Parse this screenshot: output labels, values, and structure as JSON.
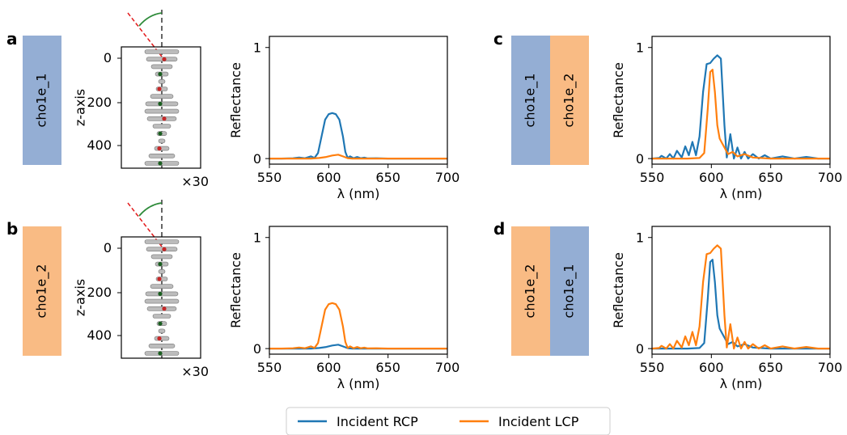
{
  "panel_labels": [
    "a",
    "b",
    "c",
    "d"
  ],
  "layer_labels": {
    "a": [
      "cho1e_1"
    ],
    "b": [
      "cho1e_2"
    ],
    "c": [
      "cho1e_1",
      "cho1e_2"
    ],
    "d": [
      "cho1e_2",
      "cho1e_1"
    ]
  },
  "colors": {
    "cho1e_1": "#94aed4",
    "cho1e_2": "#f9bb84",
    "rcp": "#1f77b4",
    "lcp": "#ff7f0e",
    "helix_axis": "#333333",
    "tilt_line": "#e31a1c",
    "tilt_arc": "#2e8b3a"
  },
  "structure": {
    "ylabel": "z-axis",
    "yticks": [
      0,
      200,
      400
    ],
    "multiplier": "×30"
  },
  "legend": [
    "Incident RCP",
    "Incident LCP"
  ],
  "chart_data": [
    {
      "id": "a",
      "type": "line",
      "xlabel": "λ (nm)",
      "ylabel": "Reflectance",
      "xlim": [
        550,
        700
      ],
      "ylim": [
        -0.05,
        1.1
      ],
      "xticks": [
        550,
        600,
        650,
        700
      ],
      "yticks": [
        0,
        1
      ],
      "series": [
        {
          "name": "Incident RCP",
          "x": [
            550,
            560,
            570,
            575,
            580,
            585,
            588,
            591,
            594,
            597,
            600,
            603,
            606,
            609,
            612,
            614,
            616,
            618,
            621,
            624,
            627,
            630,
            633,
            640,
            650,
            700
          ],
          "y": [
            0,
            0,
            0.003,
            0.01,
            0.003,
            0.02,
            0.005,
            0.05,
            0.2,
            0.35,
            0.4,
            0.41,
            0.4,
            0.35,
            0.2,
            0.06,
            0.005,
            0.02,
            0.003,
            0.014,
            0.003,
            0.008,
            0.002,
            0.003,
            0,
            0
          ]
        },
        {
          "name": "Incident LCP",
          "x": [
            550,
            570,
            585,
            592,
            598,
            603,
            608,
            612,
            616,
            620,
            650,
            700
          ],
          "y": [
            0,
            0,
            0,
            0.005,
            0.015,
            0.028,
            0.035,
            0.02,
            0.004,
            0,
            0,
            0
          ]
        }
      ]
    },
    {
      "id": "b",
      "type": "line",
      "xlabel": "λ (nm)",
      "ylabel": "Reflectance",
      "xlim": [
        550,
        700
      ],
      "ylim": [
        -0.05,
        1.1
      ],
      "xticks": [
        550,
        600,
        650,
        700
      ],
      "yticks": [
        0,
        1
      ],
      "series": [
        {
          "name": "Incident RCP",
          "x": [
            550,
            570,
            585,
            592,
            598,
            603,
            608,
            612,
            616,
            620,
            650,
            700
          ],
          "y": [
            0,
            0,
            0,
            0.005,
            0.015,
            0.028,
            0.035,
            0.02,
            0.004,
            0,
            0,
            0
          ]
        },
        {
          "name": "Incident LCP",
          "x": [
            550,
            560,
            570,
            575,
            580,
            585,
            588,
            591,
            594,
            597,
            600,
            603,
            606,
            609,
            612,
            614,
            616,
            618,
            621,
            624,
            627,
            630,
            633,
            640,
            650,
            700
          ],
          "y": [
            0,
            0,
            0.003,
            0.01,
            0.003,
            0.02,
            0.005,
            0.05,
            0.2,
            0.35,
            0.4,
            0.41,
            0.4,
            0.35,
            0.2,
            0.06,
            0.005,
            0.02,
            0.003,
            0.014,
            0.003,
            0.008,
            0.002,
            0.003,
            0,
            0
          ]
        }
      ]
    },
    {
      "id": "c",
      "type": "line",
      "xlabel": "λ (nm)",
      "ylabel": "Reflectance",
      "xlim": [
        550,
        700
      ],
      "ylim": [
        -0.05,
        1.1
      ],
      "xticks": [
        550,
        600,
        650,
        700
      ],
      "yticks": [
        0,
        1
      ],
      "series": [
        {
          "name": "Incident RCP",
          "x": [
            550,
            556,
            558,
            562,
            565,
            568,
            571,
            575,
            578,
            581,
            584,
            587,
            590,
            593,
            596,
            599,
            602,
            605,
            608,
            611,
            613,
            616,
            619,
            622,
            625,
            628,
            631,
            635,
            640,
            645,
            650,
            660,
            670,
            680,
            690,
            700
          ],
          "y": [
            0,
            0.005,
            0.025,
            0,
            0.04,
            0,
            0.07,
            0.01,
            0.11,
            0.03,
            0.15,
            0.03,
            0.2,
            0.6,
            0.85,
            0.86,
            0.9,
            0.93,
            0.9,
            0.3,
            0.01,
            0.22,
            0,
            0.1,
            0,
            0.06,
            0,
            0.04,
            0,
            0.03,
            0,
            0.02,
            0,
            0.015,
            0,
            0
          ]
        },
        {
          "name": "Incident LCP",
          "x": [
            550,
            580,
            590,
            594,
            597,
            599,
            601,
            603,
            605,
            607,
            609,
            611,
            614,
            618,
            622,
            628,
            635,
            650,
            700
          ],
          "y": [
            0,
            0,
            0.005,
            0.05,
            0.45,
            0.78,
            0.8,
            0.6,
            0.3,
            0.18,
            0.14,
            0.1,
            0.04,
            0.06,
            0.02,
            0.04,
            0.01,
            0,
            0
          ]
        }
      ]
    },
    {
      "id": "d",
      "type": "line",
      "xlabel": "λ (nm)",
      "ylabel": "Reflectance",
      "xlim": [
        550,
        700
      ],
      "ylim": [
        -0.05,
        1.1
      ],
      "xticks": [
        550,
        600,
        650,
        700
      ],
      "yticks": [
        0,
        1
      ],
      "series": [
        {
          "name": "Incident RCP",
          "x": [
            550,
            580,
            590,
            594,
            597,
            599,
            601,
            603,
            605,
            607,
            609,
            611,
            614,
            618,
            622,
            628,
            635,
            650,
            700
          ],
          "y": [
            0,
            0,
            0.005,
            0.05,
            0.45,
            0.78,
            0.8,
            0.6,
            0.3,
            0.18,
            0.14,
            0.1,
            0.04,
            0.06,
            0.02,
            0.04,
            0.01,
            0,
            0
          ]
        },
        {
          "name": "Incident LCP",
          "x": [
            550,
            556,
            558,
            562,
            565,
            568,
            571,
            575,
            578,
            581,
            584,
            587,
            590,
            593,
            596,
            599,
            602,
            605,
            608,
            611,
            613,
            616,
            619,
            622,
            625,
            628,
            631,
            635,
            640,
            645,
            650,
            660,
            670,
            680,
            690,
            700
          ],
          "y": [
            0,
            0.005,
            0.025,
            0,
            0.04,
            0,
            0.07,
            0.01,
            0.11,
            0.03,
            0.15,
            0.03,
            0.2,
            0.6,
            0.85,
            0.86,
            0.9,
            0.93,
            0.9,
            0.3,
            0.01,
            0.22,
            0,
            0.1,
            0,
            0.06,
            0,
            0.04,
            0,
            0.03,
            0,
            0.02,
            0,
            0.015,
            0,
            0
          ]
        }
      ]
    }
  ]
}
